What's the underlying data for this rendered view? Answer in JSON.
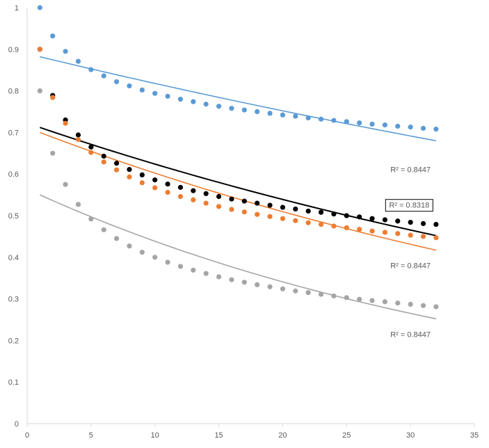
{
  "chart_data": {
    "type": "scatter",
    "title": "",
    "xlabel": "",
    "ylabel": "",
    "xlim": [
      0,
      35
    ],
    "ylim": [
      0,
      1
    ],
    "x_ticks": [
      0,
      5,
      10,
      15,
      20,
      25,
      30,
      35
    ],
    "y_ticks": [
      0,
      0.1,
      0.2,
      0.3,
      0.4,
      0.5,
      0.6,
      0.7,
      0.8,
      0.9,
      1
    ],
    "x_tick_labels": [
      "0",
      "5",
      "10",
      "15",
      "20",
      "25",
      "30",
      "35"
    ],
    "y_tick_labels": [
      "0",
      "0.1",
      "0.2",
      "0.3",
      "0.4",
      "0.5",
      "0.6",
      "0.7",
      "0.8",
      "0.9",
      "1"
    ],
    "grid": false,
    "legend": "none",
    "x": [
      1,
      2,
      3,
      4,
      5,
      6,
      7,
      8,
      9,
      10,
      11,
      12,
      13,
      14,
      15,
      16,
      17,
      18,
      19,
      20,
      21,
      22,
      23,
      24,
      25,
      26,
      27,
      28,
      29,
      30,
      31,
      32
    ],
    "series": [
      {
        "color": "#5B9BD5",
        "values": [
          1.0,
          0.932,
          0.895,
          0.871,
          0.851,
          0.836,
          0.822,
          0.812,
          0.802,
          0.794,
          0.787,
          0.78,
          0.774,
          0.768,
          0.763,
          0.758,
          0.754,
          0.75,
          0.746,
          0.742,
          0.739,
          0.735,
          0.732,
          0.729,
          0.726,
          0.723,
          0.72,
          0.718,
          0.715,
          0.713,
          0.71,
          0.708
        ],
        "trendline": {
          "type": "exponential",
          "x_range": [
            1,
            32
          ],
          "y_range": [
            0.882,
            0.68
          ],
          "r2_label": "R² = 0.8447",
          "r2_boxed": false
        }
      },
      {
        "color": "#000000",
        "values": [
          0.9,
          0.789,
          0.73,
          0.694,
          0.665,
          0.643,
          0.626,
          0.611,
          0.598,
          0.586,
          0.576,
          0.568,
          0.56,
          0.553,
          0.546,
          0.54,
          0.535,
          0.53,
          0.525,
          0.52,
          0.516,
          0.511,
          0.508,
          0.504,
          0.5,
          0.497,
          0.493,
          0.49,
          0.487,
          0.484,
          0.481,
          0.479
        ],
        "trendline": {
          "type": "exponential",
          "x_range": [
            1,
            32
          ],
          "y_range": [
            0.712,
            0.452
          ],
          "r2_label": "R² = 0.8318",
          "r2_boxed": true
        }
      },
      {
        "color": "#ED7D31",
        "values": [
          0.9,
          0.784,
          0.722,
          0.683,
          0.652,
          0.629,
          0.61,
          0.593,
          0.579,
          0.567,
          0.556,
          0.546,
          0.538,
          0.53,
          0.522,
          0.515,
          0.509,
          0.503,
          0.498,
          0.493,
          0.488,
          0.483,
          0.479,
          0.475,
          0.471,
          0.467,
          0.463,
          0.46,
          0.457,
          0.453,
          0.45,
          0.447
        ],
        "trendline": {
          "type": "exponential",
          "x_range": [
            1,
            32
          ],
          "y_range": [
            0.7,
            0.417
          ],
          "r2_label": "R² = 0.8447",
          "r2_boxed": false
        }
      },
      {
        "color": "#A5A5A5",
        "values": [
          0.8,
          0.65,
          0.575,
          0.527,
          0.492,
          0.466,
          0.445,
          0.427,
          0.412,
          0.4,
          0.388,
          0.378,
          0.369,
          0.361,
          0.353,
          0.346,
          0.34,
          0.334,
          0.329,
          0.324,
          0.319,
          0.315,
          0.311,
          0.307,
          0.303,
          0.299,
          0.296,
          0.293,
          0.29,
          0.287,
          0.284,
          0.281
        ],
        "trendline": {
          "type": "exponential",
          "x_range": [
            1,
            32
          ],
          "y_range": [
            0.55,
            0.252
          ],
          "r2_label": "R² = 0.8447",
          "r2_boxed": false
        }
      }
    ]
  }
}
